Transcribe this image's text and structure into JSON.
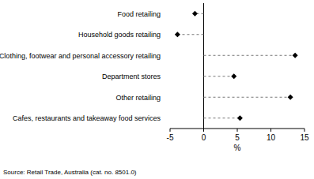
{
  "chart_data": {
    "type": "dot",
    "orientation": "horizontal",
    "categories": [
      "Food retailing",
      "Household goods retailing",
      "Clothing, footwear and personal accessory retailing",
      "Department stores",
      "Other retailing",
      "Cafes, restaurants and takeaway food services"
    ],
    "values": [
      -1.3,
      -3.9,
      13.6,
      4.5,
      12.9,
      5.4
    ],
    "color": "#000000",
    "marker": "diamond",
    "line_style": "dashed",
    "xlim": [
      -5,
      15
    ],
    "xticks": [
      -5,
      0,
      5,
      10,
      15
    ],
    "x_label": "%",
    "source": "Source: Retail Trade, Australia (cat. no. 8501.0)"
  }
}
